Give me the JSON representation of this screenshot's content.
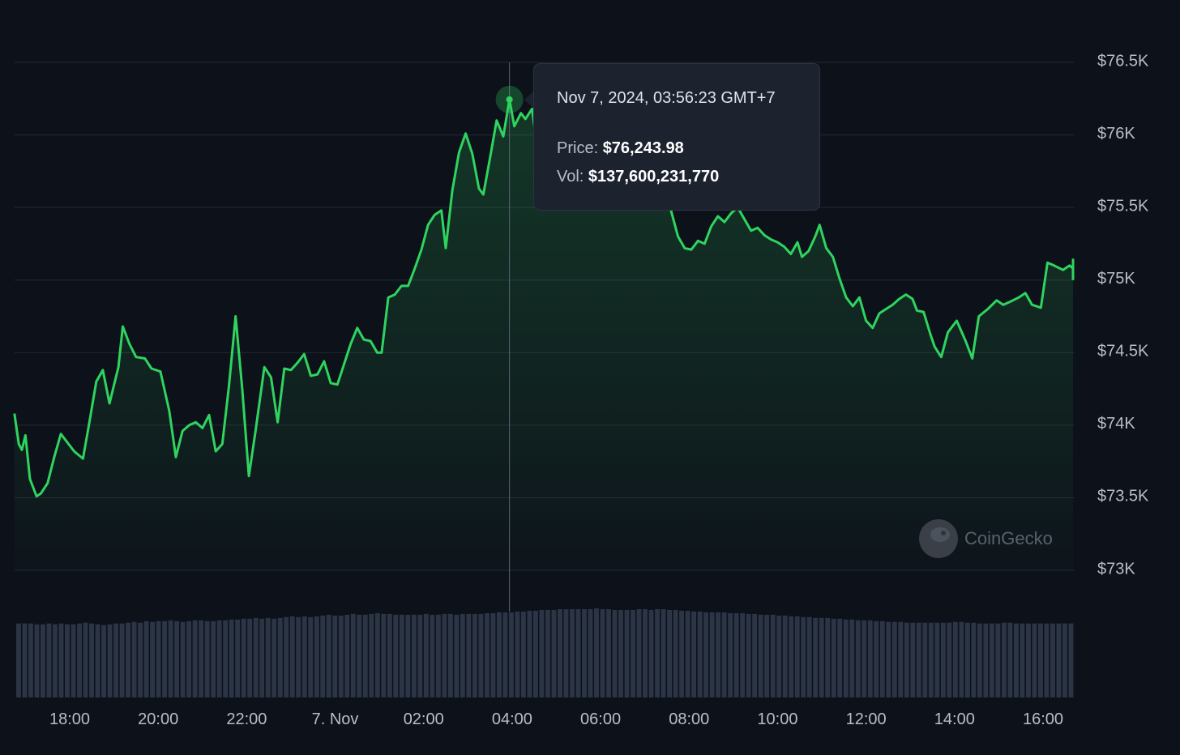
{
  "colors": {
    "background": "#0d111a",
    "line": "#2fd45f",
    "gridline": "#232a35",
    "volume_bar": "#2b3545",
    "tooltip_bg": "#1c232f",
    "axis_text": "#b8bec9"
  },
  "tooltip": {
    "date": "Nov 7, 2024, 03:56:23 GMT+7",
    "price_label": "Price:",
    "price_value": "$76,243.98",
    "vol_label": "Vol:",
    "vol_value": "$137,600,231,770"
  },
  "watermark": {
    "text": "CoinGecko",
    "icon": "gecko-logo-icon"
  },
  "chart_data": {
    "type": "area",
    "title": "",
    "xlabel": "",
    "ylabel": "",
    "grid": true,
    "y_axis_position": "right",
    "ylim": [
      72750,
      76600
    ],
    "y_ticks": [
      {
        "value": 76500,
        "label": "$76.5K"
      },
      {
        "value": 76000,
        "label": "$76K"
      },
      {
        "value": 75500,
        "label": "$75.5K"
      },
      {
        "value": 75000,
        "label": "$75K"
      },
      {
        "value": 74500,
        "label": "$74.5K"
      },
      {
        "value": 74000,
        "label": "$74K"
      },
      {
        "value": 73500,
        "label": "$73.5K"
      },
      {
        "value": 73000,
        "label": "$73K"
      }
    ],
    "xlim": [
      16.75,
      40.7
    ],
    "x_unit": "hours since Nov 6, 2024 00:00 (GMT+7)",
    "x_ticks": [
      {
        "value": 18,
        "label": "18:00"
      },
      {
        "value": 20,
        "label": "20:00"
      },
      {
        "value": 22,
        "label": "22:00"
      },
      {
        "value": 24,
        "label": "7. Nov"
      },
      {
        "value": 26,
        "label": "02:00"
      },
      {
        "value": 28,
        "label": "04:00"
      },
      {
        "value": 30,
        "label": "06:00"
      },
      {
        "value": 32,
        "label": "08:00"
      },
      {
        "value": 34,
        "label": "10:00"
      },
      {
        "value": 36,
        "label": "12:00"
      },
      {
        "value": 38,
        "label": "14:00"
      },
      {
        "value": 40,
        "label": "16:00"
      }
    ],
    "highlight": {
      "x": 27.94,
      "y": 76243.98
    },
    "series": [
      {
        "name": "Price",
        "points": [
          [
            16.75,
            74080
          ],
          [
            16.85,
            73870
          ],
          [
            16.92,
            73830
          ],
          [
            17.0,
            73930
          ],
          [
            17.1,
            73630
          ],
          [
            17.25,
            73510
          ],
          [
            17.35,
            73530
          ],
          [
            17.5,
            73600
          ],
          [
            17.65,
            73780
          ],
          [
            17.8,
            73940
          ],
          [
            17.95,
            73880
          ],
          [
            18.1,
            73820
          ],
          [
            18.3,
            73770
          ],
          [
            18.45,
            74030
          ],
          [
            18.6,
            74300
          ],
          [
            18.75,
            74380
          ],
          [
            18.9,
            74150
          ],
          [
            19.1,
            74400
          ],
          [
            19.2,
            74680
          ],
          [
            19.35,
            74560
          ],
          [
            19.5,
            74470
          ],
          [
            19.7,
            74460
          ],
          [
            19.85,
            74390
          ],
          [
            20.05,
            74370
          ],
          [
            20.25,
            74100
          ],
          [
            20.4,
            73780
          ],
          [
            20.55,
            73960
          ],
          [
            20.7,
            74000
          ],
          [
            20.85,
            74020
          ],
          [
            21.0,
            73980
          ],
          [
            21.15,
            74070
          ],
          [
            21.3,
            73820
          ],
          [
            21.45,
            73870
          ],
          [
            21.6,
            74270
          ],
          [
            21.75,
            74750
          ],
          [
            21.9,
            74250
          ],
          [
            22.05,
            73650
          ],
          [
            22.2,
            73960
          ],
          [
            22.4,
            74400
          ],
          [
            22.55,
            74330
          ],
          [
            22.7,
            74020
          ],
          [
            22.85,
            74390
          ],
          [
            23.0,
            74380
          ],
          [
            23.15,
            74430
          ],
          [
            23.3,
            74490
          ],
          [
            23.45,
            74340
          ],
          [
            23.6,
            74350
          ],
          [
            23.75,
            74440
          ],
          [
            23.9,
            74290
          ],
          [
            24.05,
            74280
          ],
          [
            24.2,
            74420
          ],
          [
            24.35,
            74560
          ],
          [
            24.5,
            74670
          ],
          [
            24.65,
            74590
          ],
          [
            24.8,
            74580
          ],
          [
            24.95,
            74500
          ],
          [
            25.05,
            74500
          ],
          [
            25.2,
            74880
          ],
          [
            25.35,
            74900
          ],
          [
            25.5,
            74960
          ],
          [
            25.65,
            74960
          ],
          [
            25.8,
            75080
          ],
          [
            25.95,
            75210
          ],
          [
            26.1,
            75380
          ],
          [
            26.25,
            75450
          ],
          [
            26.4,
            75480
          ],
          [
            26.5,
            75220
          ],
          [
            26.65,
            75620
          ],
          [
            26.8,
            75880
          ],
          [
            26.95,
            76010
          ],
          [
            27.1,
            75870
          ],
          [
            27.25,
            75630
          ],
          [
            27.35,
            75590
          ],
          [
            27.5,
            75840
          ],
          [
            27.65,
            76100
          ],
          [
            27.8,
            75990
          ],
          [
            27.94,
            76243.98
          ],
          [
            28.05,
            76060
          ],
          [
            28.2,
            76150
          ],
          [
            28.3,
            76110
          ],
          [
            28.45,
            76180
          ],
          [
            28.55,
            75950
          ],
          [
            28.7,
            76010
          ],
          [
            29.0,
            75950
          ],
          [
            29.4,
            75920
          ],
          [
            29.8,
            75880
          ],
          [
            30.2,
            75850
          ],
          [
            30.6,
            75800
          ],
          [
            31.0,
            75750
          ],
          [
            31.4,
            75690
          ],
          [
            31.6,
            75470
          ],
          [
            31.75,
            75300
          ],
          [
            31.9,
            75220
          ],
          [
            32.05,
            75210
          ],
          [
            32.2,
            75270
          ],
          [
            32.35,
            75250
          ],
          [
            32.5,
            75370
          ],
          [
            32.65,
            75440
          ],
          [
            32.8,
            75400
          ],
          [
            32.95,
            75460
          ],
          [
            33.1,
            75500
          ],
          [
            33.25,
            75420
          ],
          [
            33.4,
            75340
          ],
          [
            33.55,
            75360
          ],
          [
            33.7,
            75310
          ],
          [
            33.85,
            75280
          ],
          [
            34.0,
            75260
          ],
          [
            34.15,
            75230
          ],
          [
            34.3,
            75180
          ],
          [
            34.45,
            75260
          ],
          [
            34.55,
            75160
          ],
          [
            34.7,
            75200
          ],
          [
            34.85,
            75300
          ],
          [
            34.95,
            75380
          ],
          [
            35.1,
            75220
          ],
          [
            35.25,
            75160
          ],
          [
            35.4,
            75010
          ],
          [
            35.55,
            74880
          ],
          [
            35.7,
            74820
          ],
          [
            35.85,
            74880
          ],
          [
            36.0,
            74720
          ],
          [
            36.15,
            74670
          ],
          [
            36.3,
            74770
          ],
          [
            36.45,
            74800
          ],
          [
            36.6,
            74830
          ],
          [
            36.75,
            74870
          ],
          [
            36.9,
            74900
          ],
          [
            37.05,
            74870
          ],
          [
            37.15,
            74790
          ],
          [
            37.3,
            74780
          ],
          [
            37.45,
            74630
          ],
          [
            37.55,
            74540
          ],
          [
            37.7,
            74470
          ],
          [
            37.85,
            74640
          ],
          [
            38.05,
            74720
          ],
          [
            38.25,
            74580
          ],
          [
            38.4,
            74460
          ],
          [
            38.55,
            74750
          ],
          [
            38.75,
            74800
          ],
          [
            38.95,
            74860
          ],
          [
            39.1,
            74830
          ],
          [
            39.25,
            74850
          ],
          [
            39.45,
            74880
          ],
          [
            39.6,
            74910
          ],
          [
            39.75,
            74830
          ],
          [
            39.95,
            74810
          ],
          [
            40.1,
            75120
          ],
          [
            40.25,
            75100
          ],
          [
            40.45,
            75070
          ],
          [
            40.6,
            75100
          ],
          [
            40.7,
            75080
          ],
          [
            40.85,
            75110
          ],
          [
            41.0,
            75140
          ],
          [
            41.1,
            75080
          ],
          [
            41.25,
            75010
          ],
          [
            41.4,
            75050
          ],
          [
            41.5,
            75020
          ],
          [
            41.65,
            75000
          ]
        ]
      }
    ],
    "volume": {
      "name": "Vol",
      "scale_max": 145000000000,
      "bars": [
        93,
        93,
        93,
        92,
        92,
        93,
        92,
        93,
        92,
        92,
        93,
        94,
        93,
        92,
        91,
        92,
        93,
        93,
        94,
        95,
        94,
        96,
        95,
        96,
        96,
        97,
        96,
        95,
        96,
        97,
        97,
        96,
        96,
        97,
        97,
        98,
        98,
        99,
        99,
        100,
        99,
        100,
        99,
        100,
        101,
        102,
        101,
        102,
        101,
        102,
        103,
        104,
        103,
        103,
        104,
        105,
        104,
        104,
        105,
        106,
        105,
        105,
        104,
        104,
        104,
        104,
        104,
        105,
        104,
        104,
        105,
        105,
        104,
        105,
        105,
        105,
        105,
        106,
        106,
        107,
        107,
        107,
        108,
        108,
        109,
        109,
        110,
        110,
        110,
        111,
        111,
        111,
        111,
        111,
        111,
        112,
        111,
        111,
        110,
        110,
        110,
        110,
        111,
        111,
        110,
        111,
        111,
        110,
        110,
        109,
        109,
        108,
        108,
        107,
        107,
        107,
        107,
        106,
        106,
        106,
        105,
        105,
        104,
        104,
        104,
        103,
        103,
        102,
        102,
        101,
        101,
        100,
        100,
        100,
        99,
        99,
        98,
        98,
        97,
        97,
        97,
        96,
        96,
        95,
        95,
        95,
        94,
        94,
        94,
        94,
        94,
        94,
        94,
        94,
        95,
        95,
        94,
        94,
        93,
        93,
        93,
        93,
        94,
        94,
        93,
        93,
        93,
        93,
        93,
        93,
        93,
        93,
        93,
        93
      ]
    }
  }
}
